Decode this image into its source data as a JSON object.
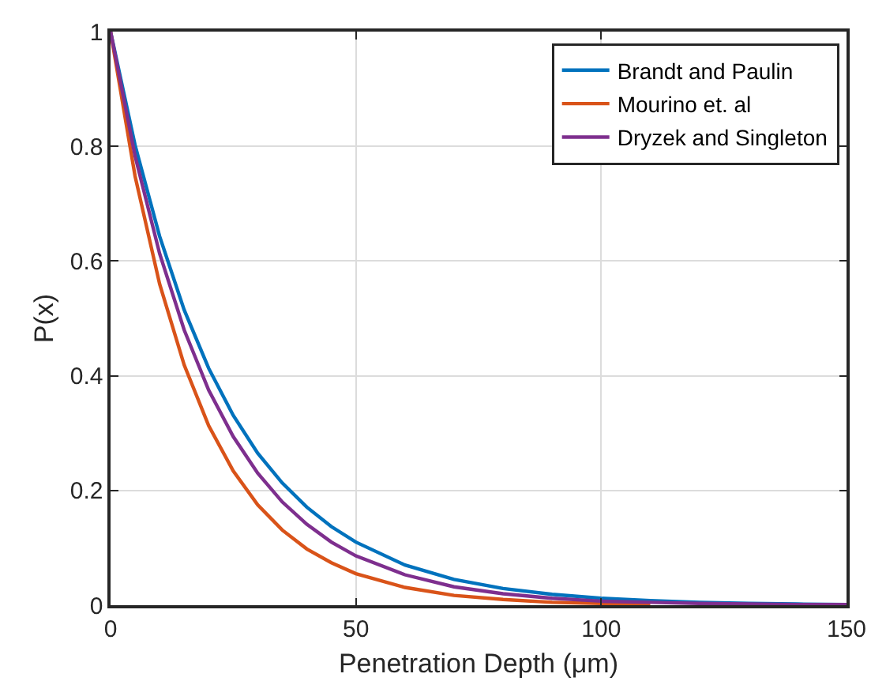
{
  "chart_data": {
    "type": "line",
    "xlabel": "Penetration Depth (μm)",
    "ylabel": "P(x)",
    "x": [
      0,
      5,
      10,
      15,
      20,
      25,
      30,
      35,
      40,
      45,
      50,
      60,
      70,
      80,
      90,
      100,
      110,
      120,
      130,
      140,
      150
    ],
    "series": [
      {
        "name": "Brandt and Paulin",
        "color": "#0072bd",
        "values": [
          1,
          0.802,
          0.643,
          0.515,
          0.413,
          0.331,
          0.265,
          0.213,
          0.171,
          0.137,
          0.11,
          0.07,
          0.045,
          0.029,
          0.019,
          0.012,
          0.008,
          0.005,
          0.003,
          0.002,
          0.001
        ]
      },
      {
        "name": "Mourino et. al",
        "color": "#d95319",
        "values": [
          1,
          0.748,
          0.56,
          0.419,
          0.313,
          0.234,
          0.175,
          0.131,
          0.098,
          0.074,
          0.055,
          0.031,
          0.017,
          0.01,
          0.005,
          0.003,
          0.002,
          null,
          null,
          null,
          null
        ]
      },
      {
        "name": "Dryzek and Singleton",
        "color": "#7e2f8e",
        "values": [
          1,
          0.783,
          0.613,
          0.48,
          0.375,
          0.294,
          0.23,
          0.18,
          0.141,
          0.11,
          0.086,
          0.053,
          0.032,
          0.02,
          0.012,
          0.007,
          0.005,
          0.003,
          0.002,
          0.001,
          0.001
        ]
      }
    ],
    "xlim": [
      0,
      150
    ],
    "xticks": [
      0,
      50,
      100,
      150
    ],
    "ylim": [
      0,
      1
    ],
    "yticks": [
      0,
      0.2,
      0.4,
      0.6,
      0.8,
      1
    ],
    "grid": true,
    "legend": "top right",
    "line_style": "solid"
  }
}
